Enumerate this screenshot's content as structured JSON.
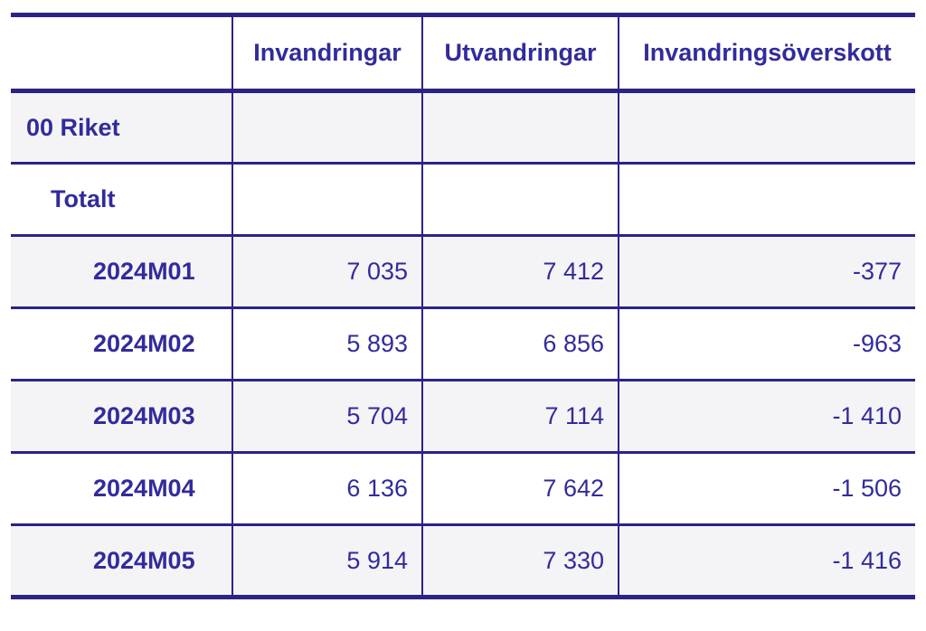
{
  "table": {
    "columns": [
      {
        "label": ""
      },
      {
        "label": "Invandringar"
      },
      {
        "label": "Utvandringar"
      },
      {
        "label": "Invandringsöverskott"
      }
    ],
    "rows": [
      {
        "label": "00 Riket",
        "indent": 0,
        "values": [
          "",
          "",
          ""
        ]
      },
      {
        "label": "Totalt",
        "indent": 1,
        "values": [
          "",
          "",
          ""
        ]
      },
      {
        "label": "2024M01",
        "indent": 2,
        "values": [
          "7 035",
          "7 412",
          "-377"
        ]
      },
      {
        "label": "2024M02",
        "indent": 2,
        "values": [
          "5 893",
          "6 856",
          "-963"
        ]
      },
      {
        "label": "2024M03",
        "indent": 2,
        "values": [
          "5 704",
          "7 114",
          "-1 410"
        ]
      },
      {
        "label": "2024M04",
        "indent": 2,
        "values": [
          "6 136",
          "7 642",
          "-1 506"
        ]
      },
      {
        "label": "2024M05",
        "indent": 2,
        "values": [
          "5 914",
          "7 330",
          "-1 416"
        ]
      }
    ]
  },
  "chart_data": {
    "type": "table",
    "region": "00 Riket",
    "group": "Totalt",
    "columns": [
      "Invandringar",
      "Utvandringar",
      "Invandringsöverskott"
    ],
    "rows": [
      {
        "period": "2024M01",
        "values": [
          7035,
          7412,
          -377
        ]
      },
      {
        "period": "2024M02",
        "values": [
          5893,
          6856,
          -963
        ]
      },
      {
        "period": "2024M03",
        "values": [
          5704,
          7114,
          -1410
        ]
      },
      {
        "period": "2024M04",
        "values": [
          6136,
          7642,
          -1506
        ]
      },
      {
        "period": "2024M05",
        "values": [
          5914,
          7330,
          -1416
        ]
      }
    ]
  },
  "colors": {
    "text": "#322b9c",
    "border": "#2c2387",
    "zebra_row": "#f4f3f6",
    "background": "#ffffff"
  }
}
